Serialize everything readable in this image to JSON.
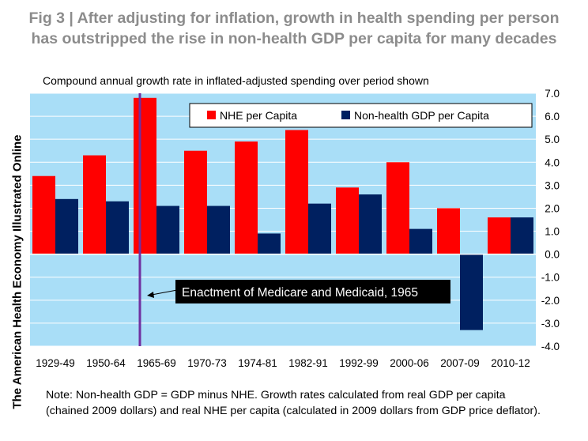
{
  "chart_data": {
    "type": "bar",
    "title": "Fig 3 | After adjusting for inflation, growth in health spending per person has outstripped the rise in non-health GDP per capita for many decades",
    "subtitle": "Compound annual growth rate in inflated-adjusted spending over period shown",
    "side_label": "The American Health Economy Illustrated Online",
    "categories": [
      "1929-49",
      "1950-64",
      "1965-69",
      "1970-73",
      "1974-81",
      "1982-91",
      "1992-99",
      "2000-06",
      "2007-09",
      "2010-12"
    ],
    "series": [
      {
        "name": "NHE per Capita",
        "color": "#ff0000",
        "values": [
          3.4,
          4.3,
          6.8,
          4.5,
          4.9,
          5.4,
          2.9,
          4.0,
          2.0,
          1.6
        ]
      },
      {
        "name": "Non-health GDP per Capita",
        "color": "#002060",
        "values": [
          2.4,
          2.3,
          2.1,
          2.1,
          0.9,
          2.2,
          2.6,
          1.1,
          -3.3,
          1.6
        ]
      }
    ],
    "ylim": [
      -4.0,
      7.0
    ],
    "yticks": [
      "-4.0",
      "-3.0",
      "-2.0",
      "-1.0",
      "0.0",
      "1.0",
      "2.0",
      "3.0",
      "4.0",
      "5.0",
      "6.0",
      "7.0"
    ],
    "axis_position": "right",
    "legend_position": "top-right",
    "plot_background": "#a9def7",
    "marker_line": {
      "between_categories": [
        "1950-64",
        "1965-69"
      ],
      "color": "#7030a0"
    },
    "annotation": "Enactment of Medicare and Medicaid, 1965",
    "note_lines": [
      "Note: Non-health GDP = GDP minus NHE.  Growth rates calculated from real GDP per capita",
      "(chained 2009 dollars) and real NHE per capita (calculated in 2009 dollars from GDP price deflator)."
    ]
  }
}
